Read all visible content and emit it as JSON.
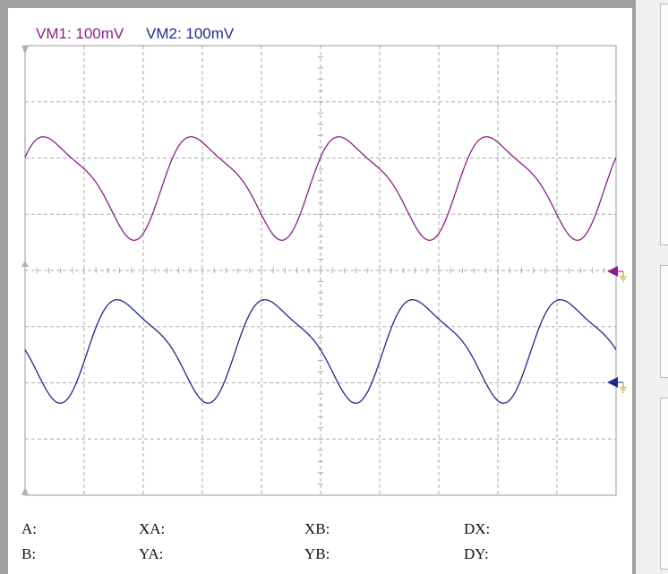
{
  "channels": {
    "vm1": {
      "label": "VM1: 100mV",
      "color": "#8b1e8b"
    },
    "vm2": {
      "label": "VM2: 100mV",
      "color": "#1e2a8a"
    }
  },
  "grid": {
    "divisions_x": 10,
    "divisions_y": 8,
    "line_color": "#aaaaaa"
  },
  "markers": {
    "channel1_ground_icon": "ground-marker-icon",
    "channel2_ground_icon": "ground-marker-icon"
  },
  "cursor_readouts": {
    "row1": {
      "a": "A:",
      "xa": "XA:",
      "xb": "XB:",
      "dx": "DX:"
    },
    "row2": {
      "b": "B:",
      "ya": "YA:",
      "yb": "YB:",
      "dy": "DY:"
    }
  }
}
